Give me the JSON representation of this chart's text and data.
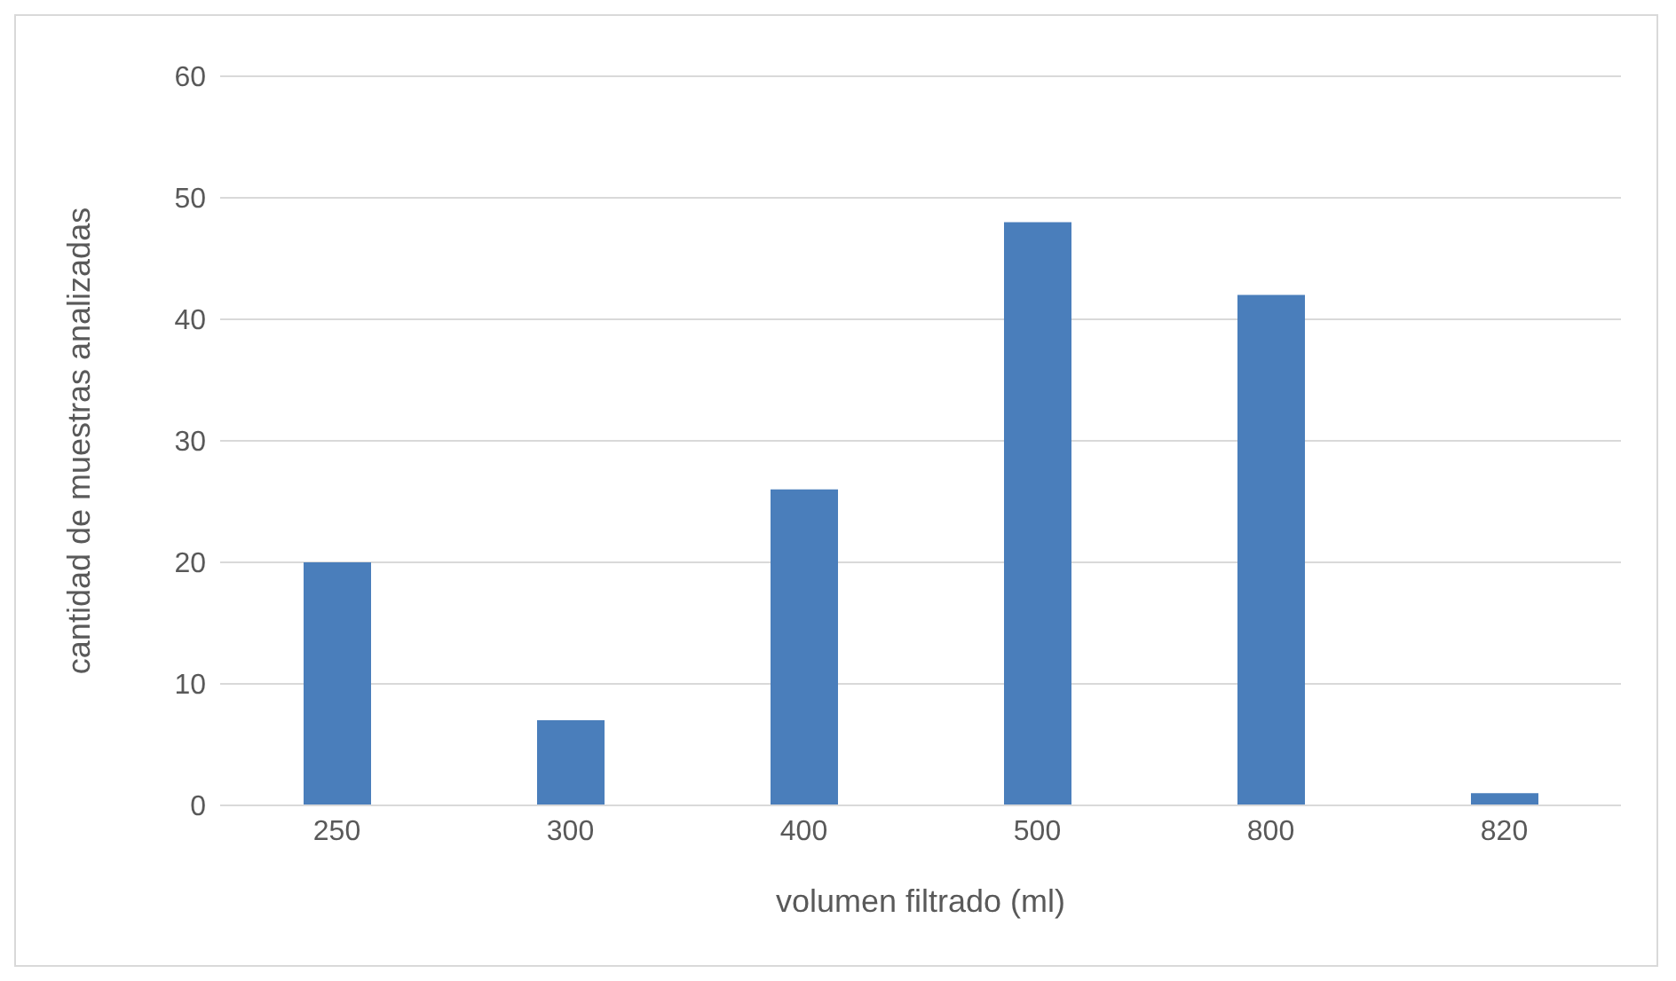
{
  "chart_data": {
    "type": "bar",
    "xlabel": "volumen filtrado (ml)",
    "ylabel": "cantidad de muestras analizadas",
    "categories": [
      "250",
      "300",
      "400",
      "500",
      "800",
      "820"
    ],
    "values": [
      20,
      7,
      26,
      48,
      42,
      1
    ],
    "color": "#4a7ebb",
    "ylim": [
      0,
      60
    ],
    "yticks": [
      0,
      10,
      20,
      30,
      40,
      50,
      60
    ],
    "grid": "y"
  }
}
